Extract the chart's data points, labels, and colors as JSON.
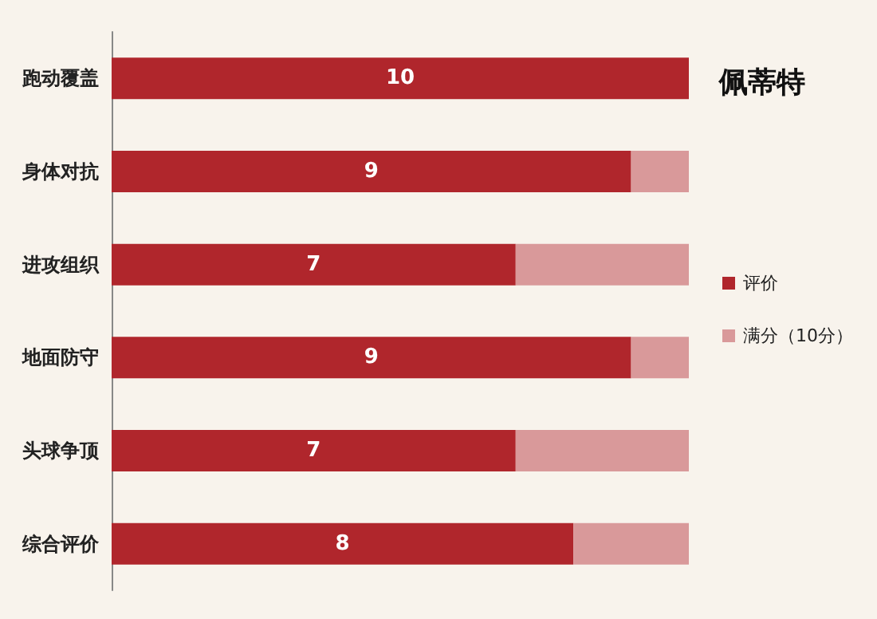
{
  "chart_data": {
    "type": "bar",
    "title": "佩蒂特",
    "orientation": "horizontal",
    "stacked": true,
    "tick_labels": "y",
    "legend": "right",
    "categories": [
      "跑动覆盖",
      "身体对抗",
      "进攻组织",
      "地面防守",
      "头球争顶",
      "综合评价"
    ],
    "series": [
      {
        "name": "评价",
        "color": "#b0262c",
        "values": [
          10,
          9,
          7,
          9,
          7,
          8
        ],
        "value_labels": [
          "10",
          "9",
          "7",
          "9",
          "7",
          "8"
        ]
      },
      {
        "name": "满分（10分）",
        "color": "#d9999a",
        "values": [
          0,
          1,
          3,
          1,
          3,
          2
        ]
      }
    ]
  }
}
